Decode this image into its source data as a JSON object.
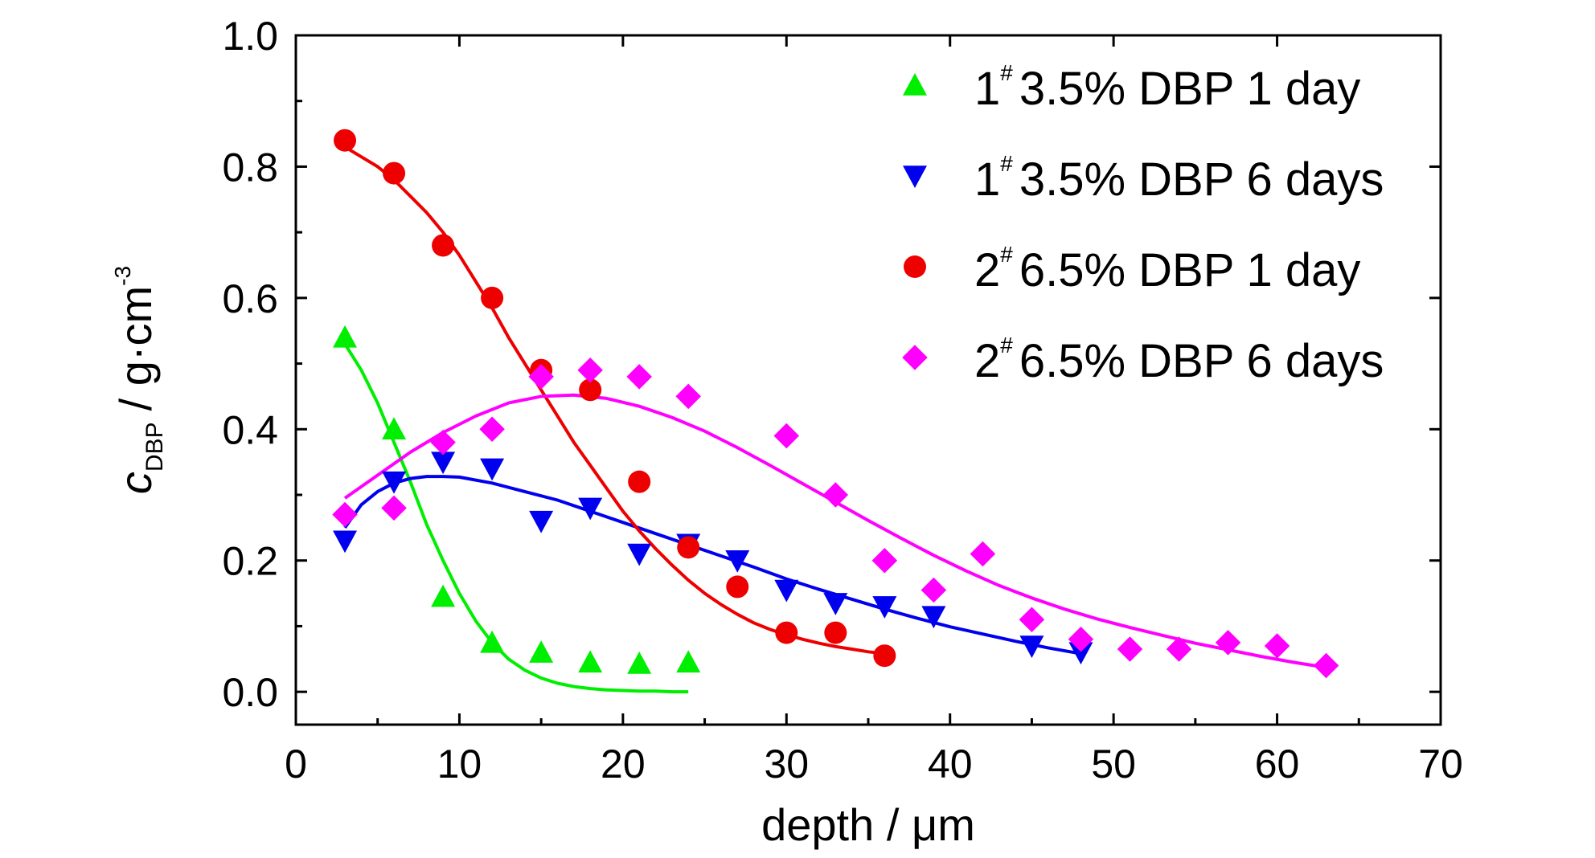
{
  "chart_data": {
    "type": "scatter",
    "xlabel": "depth / μm",
    "ylabel": {
      "c": "c",
      "subscript": "DBP",
      "unit_prefix": "/ g·cm",
      "unit_superscript": "-3"
    },
    "xlim": [
      0,
      70
    ],
    "ylim": [
      -0.05,
      1.0
    ],
    "x_ticks": [
      "0",
      "10",
      "20",
      "30",
      "40",
      "50",
      "60",
      "70"
    ],
    "y_ticks": [
      "0.0",
      "0.2",
      "0.4",
      "0.6",
      "0.8",
      "1.0"
    ],
    "grid": false,
    "legend_position": "top-right",
    "series": [
      {
        "sample": "1",
        "legend_rest": "3.5% DBP 1 day",
        "marker": "triangle-up",
        "color": "#00ee00",
        "x": [
          3,
          6,
          9,
          12,
          15,
          18,
          21,
          24
        ],
        "y": [
          0.54,
          0.4,
          0.145,
          0.075,
          0.06,
          0.045,
          0.043,
          0.045
        ],
        "fit_x": [
          3,
          4,
          5,
          6,
          7,
          8,
          9,
          10,
          11,
          12,
          13,
          14,
          15,
          16,
          17,
          18,
          19,
          20,
          21,
          22,
          23,
          24
        ],
        "fit_y": [
          0.53,
          0.49,
          0.44,
          0.38,
          0.32,
          0.255,
          0.2,
          0.15,
          0.108,
          0.075,
          0.05,
          0.033,
          0.021,
          0.013,
          0.008,
          0.005,
          0.003,
          0.002,
          0.001,
          0.001,
          0.0,
          0.0
        ]
      },
      {
        "sample": "1",
        "legend_rest": "3.5% DBP 6 days",
        "marker": "triangle-down",
        "color": "#0000ee",
        "x": [
          3,
          6,
          9,
          12,
          15,
          18,
          21,
          24,
          27,
          30,
          33,
          36,
          39,
          45,
          48
        ],
        "y": [
          0.23,
          0.32,
          0.35,
          0.34,
          0.26,
          0.28,
          0.21,
          0.225,
          0.2,
          0.155,
          0.135,
          0.13,
          0.115,
          0.07,
          0.06
        ],
        "fit_x": [
          3,
          4,
          5,
          6,
          7,
          8,
          9,
          10,
          12,
          14,
          16,
          18,
          20,
          22,
          24,
          26,
          28,
          30,
          32,
          34,
          36,
          38,
          40,
          42,
          44,
          46,
          48
        ],
        "fit_y": [
          0.25,
          0.285,
          0.305,
          0.318,
          0.325,
          0.328,
          0.328,
          0.327,
          0.318,
          0.305,
          0.292,
          0.275,
          0.258,
          0.241,
          0.224,
          0.207,
          0.19,
          0.172,
          0.156,
          0.141,
          0.126,
          0.112,
          0.099,
          0.088,
          0.077,
          0.067,
          0.058
        ]
      },
      {
        "sample": "2",
        "legend_rest": "6.5% DBP 1 day",
        "marker": "circle",
        "color": "#ee0000",
        "x": [
          3,
          6,
          9,
          12,
          15,
          18,
          21,
          24,
          27,
          30,
          33,
          36
        ],
        "y": [
          0.84,
          0.79,
          0.68,
          0.6,
          0.49,
          0.46,
          0.32,
          0.22,
          0.16,
          0.09,
          0.09,
          0.055
        ],
        "fit_x": [
          3,
          4,
          5,
          6,
          7,
          8,
          9,
          10,
          11,
          12,
          13,
          14,
          15,
          16,
          17,
          18,
          19,
          20,
          21,
          22,
          23,
          24,
          25,
          26,
          27,
          28,
          29,
          30,
          31,
          32,
          33,
          34,
          35,
          36
        ],
        "fit_y": [
          0.83,
          0.815,
          0.8,
          0.78,
          0.755,
          0.73,
          0.7,
          0.665,
          0.625,
          0.585,
          0.54,
          0.5,
          0.46,
          0.42,
          0.38,
          0.345,
          0.31,
          0.275,
          0.245,
          0.218,
          0.193,
          0.17,
          0.15,
          0.133,
          0.118,
          0.105,
          0.095,
          0.087,
          0.08,
          0.074,
          0.069,
          0.065,
          0.061,
          0.058
        ]
      },
      {
        "sample": "2",
        "legend_rest": "6.5% DBP 6 days",
        "marker": "diamond",
        "color": "#ff00ff",
        "x": [
          3,
          6,
          9,
          12,
          15,
          18,
          21,
          24,
          30,
          33,
          36,
          39,
          42,
          45,
          48,
          51,
          54,
          57,
          60,
          63
        ],
        "y": [
          0.27,
          0.28,
          0.38,
          0.4,
          0.48,
          0.49,
          0.48,
          0.45,
          0.39,
          0.3,
          0.2,
          0.155,
          0.21,
          0.11,
          0.08,
          0.065,
          0.065,
          0.075,
          0.07,
          0.04
        ],
        "fit_x": [
          3,
          5,
          7,
          9,
          11,
          13,
          15,
          17,
          19,
          21,
          23,
          25,
          27,
          29,
          31,
          33,
          35,
          37,
          39,
          41,
          43,
          45,
          47,
          49,
          51,
          53,
          55,
          57,
          59,
          61,
          63
        ],
        "fit_y": [
          0.295,
          0.33,
          0.365,
          0.395,
          0.42,
          0.44,
          0.45,
          0.452,
          0.447,
          0.435,
          0.418,
          0.397,
          0.372,
          0.345,
          0.317,
          0.289,
          0.261,
          0.234,
          0.208,
          0.184,
          0.162,
          0.143,
          0.126,
          0.111,
          0.098,
          0.086,
          0.074,
          0.064,
          0.054,
          0.045,
          0.037
        ]
      }
    ]
  }
}
